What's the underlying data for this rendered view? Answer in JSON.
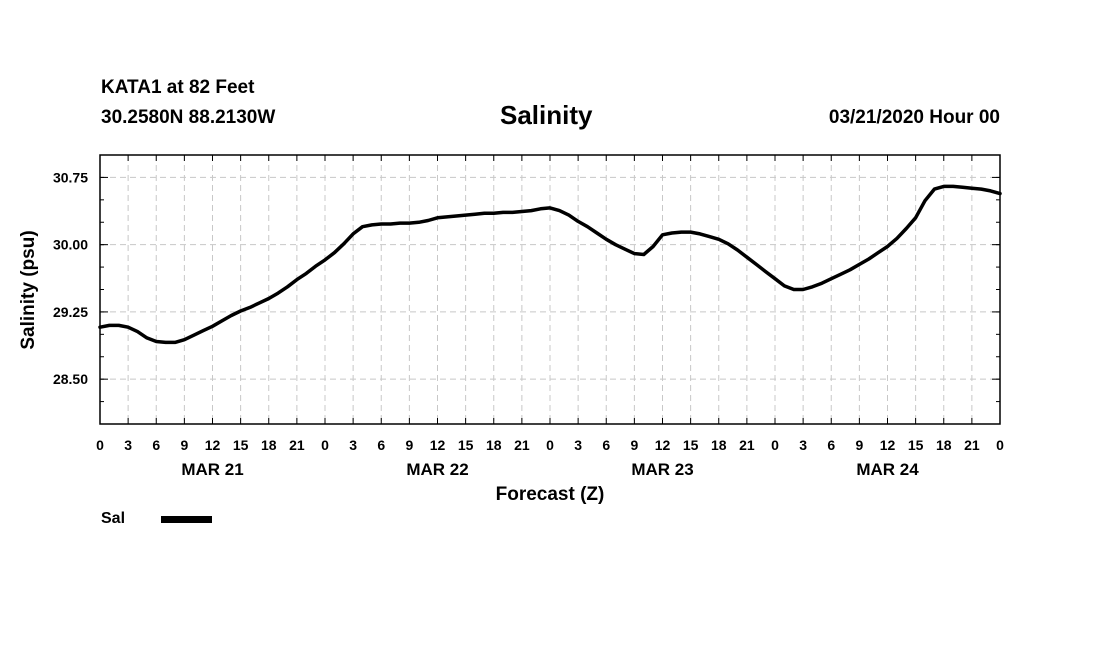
{
  "header": {
    "station": "KATA1 at 82 Feet",
    "coords": "30.2580N 88.2130W",
    "title": "Salinity",
    "datetime": "03/21/2020 Hour 00"
  },
  "chart_data": {
    "type": "line",
    "title": "Salinity",
    "xlabel": "Forecast (Z)",
    "ylabel": "Salinity (psu)",
    "ylim": [
      28.0,
      31.0
    ],
    "yticks": [
      28.5,
      29.25,
      30.0,
      30.75
    ],
    "ytick_labels": [
      "28.50",
      "29.25",
      "30.00",
      "30.75"
    ],
    "xlim": [
      0,
      96
    ],
    "x_tick_step_hours": 3,
    "x_tick_labels": [
      "0",
      "3",
      "6",
      "9",
      "12",
      "15",
      "18",
      "21",
      "0",
      "3",
      "6",
      "9",
      "12",
      "15",
      "18",
      "21",
      "0",
      "3",
      "6",
      "9",
      "12",
      "15",
      "18",
      "21",
      "0",
      "3",
      "6",
      "9",
      "12",
      "15",
      "18",
      "21",
      "0"
    ],
    "day_labels": [
      {
        "label": "MAR 21",
        "hour": 12
      },
      {
        "label": "MAR 22",
        "hour": 36
      },
      {
        "label": "MAR 23",
        "hour": 60
      },
      {
        "label": "MAR 24",
        "hour": 84
      }
    ],
    "grid": true,
    "legend": "bottom-left",
    "series": [
      {
        "name": "Sal",
        "color": "#000000",
        "x": [
          0,
          1,
          2,
          3,
          4,
          5,
          6,
          7,
          8,
          9,
          10,
          11,
          12,
          13,
          14,
          15,
          16,
          17,
          18,
          19,
          20,
          21,
          22,
          23,
          24,
          25,
          26,
          27,
          28,
          29,
          30,
          31,
          32,
          33,
          34,
          35,
          36,
          37,
          38,
          39,
          40,
          41,
          42,
          43,
          44,
          45,
          46,
          47,
          48,
          49,
          50,
          51,
          52,
          53,
          54,
          55,
          56,
          57,
          58,
          59,
          60,
          61,
          62,
          63,
          64,
          65,
          66,
          67,
          68,
          69,
          70,
          71,
          72,
          73,
          74,
          75,
          76,
          77,
          78,
          79,
          80,
          81,
          82,
          83,
          84,
          85,
          86,
          87,
          88,
          89,
          90,
          91,
          92,
          93,
          94,
          95,
          96
        ],
        "values": [
          29.08,
          29.1,
          29.1,
          29.08,
          29.03,
          28.96,
          28.92,
          28.91,
          28.91,
          28.94,
          28.99,
          29.04,
          29.09,
          29.15,
          29.21,
          29.26,
          29.3,
          29.35,
          29.4,
          29.46,
          29.53,
          29.61,
          29.68,
          29.76,
          29.83,
          29.91,
          30.01,
          30.12,
          30.2,
          30.22,
          30.23,
          30.23,
          30.24,
          30.24,
          30.25,
          30.27,
          30.3,
          30.31,
          30.32,
          30.33,
          30.34,
          30.35,
          30.35,
          30.36,
          30.36,
          30.37,
          30.38,
          30.4,
          30.41,
          30.38,
          30.33,
          30.26,
          30.2,
          30.13,
          30.06,
          30.0,
          29.95,
          29.9,
          29.89,
          29.98,
          30.11,
          30.13,
          30.14,
          30.14,
          30.12,
          30.09,
          30.06,
          30.01,
          29.94,
          29.86,
          29.78,
          29.7,
          29.62,
          29.54,
          29.5,
          29.5,
          29.53,
          29.57,
          29.62,
          29.67,
          29.72,
          29.78,
          29.84,
          29.91,
          29.98,
          30.07,
          30.18,
          30.3,
          30.49,
          30.62,
          30.65,
          30.65,
          30.64,
          30.63,
          30.62,
          30.6,
          30.57
        ]
      }
    ]
  }
}
